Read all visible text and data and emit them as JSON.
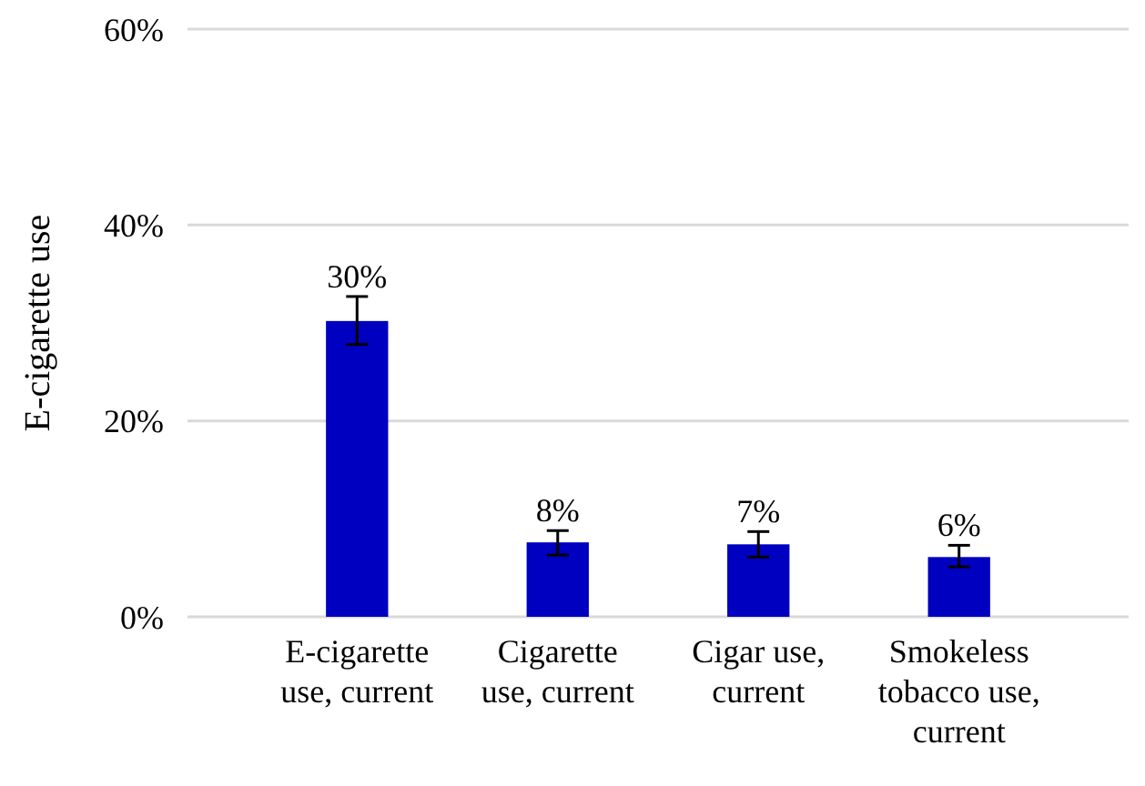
{
  "chart_data": {
    "type": "bar",
    "ylabel": "E-cigarette use",
    "categories": [
      "E-cigarette use, current",
      "Cigarette use, current",
      "Cigar use, current",
      "Smokeless tobacco use, current"
    ],
    "values": [
      30.2,
      7.6,
      7.4,
      6.1
    ],
    "color": "#0000c0",
    "errors": [
      [
        27.8,
        32.7
      ],
      [
        6.3,
        8.8
      ],
      [
        6.1,
        8.7
      ],
      [
        5.1,
        7.3
      ]
    ],
    "value_labels": [
      "30%",
      "8%",
      "7%",
      "6%"
    ],
    "ylim": [
      0,
      60
    ],
    "yticks": [
      {
        "value": 0,
        "label": "0%"
      },
      {
        "value": 20,
        "label": "20%"
      },
      {
        "value": 40,
        "label": "40%"
      },
      {
        "value": 60,
        "label": "60%"
      }
    ],
    "grid": "y"
  }
}
